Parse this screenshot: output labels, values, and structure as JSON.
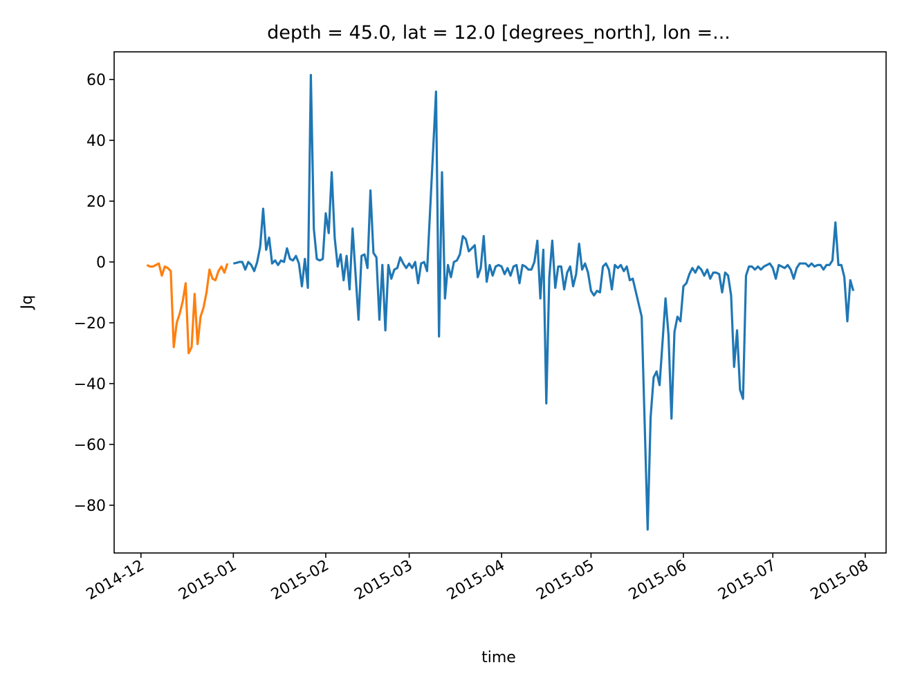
{
  "chart_data": {
    "type": "line",
    "title": "depth = 45.0, lat = 12.0 [degrees_north], lon =...",
    "xlabel": "time",
    "ylabel": "Jq",
    "xlim": [
      "2014-11-22",
      "2015-08-08"
    ],
    "ylim": [
      -95.7,
      69.1
    ],
    "xticks": [
      {
        "value": "2014-12-01",
        "label": "2014-12"
      },
      {
        "value": "2015-01-01",
        "label": "2015-01"
      },
      {
        "value": "2015-02-01",
        "label": "2015-02"
      },
      {
        "value": "2015-03-01",
        "label": "2015-03"
      },
      {
        "value": "2015-04-01",
        "label": "2015-04"
      },
      {
        "value": "2015-05-01",
        "label": "2015-05"
      },
      {
        "value": "2015-06-01",
        "label": "2015-06"
      },
      {
        "value": "2015-07-01",
        "label": "2015-07"
      },
      {
        "value": "2015-08-01",
        "label": "2015-08"
      }
    ],
    "yticks": [
      {
        "value": -80,
        "label": "−80"
      },
      {
        "value": -60,
        "label": "−60"
      },
      {
        "value": -40,
        "label": "−40"
      },
      {
        "value": -20,
        "label": "−20"
      },
      0,
      20,
      40,
      60
    ],
    "grid": false,
    "series": [
      {
        "color": "#ff7f0e",
        "x": [
          "2014-12-03",
          "2014-12-04",
          "2014-12-05",
          "2014-12-06",
          "2014-12-07",
          "2014-12-08",
          "2014-12-09",
          "2014-12-10",
          "2014-12-11",
          "2014-12-12",
          "2014-12-13",
          "2014-12-14",
          "2014-12-15",
          "2014-12-16",
          "2014-12-17",
          "2014-12-18",
          "2014-12-19",
          "2014-12-20",
          "2014-12-21",
          "2014-12-22",
          "2014-12-23",
          "2014-12-24",
          "2014-12-25",
          "2014-12-26",
          "2014-12-27",
          "2014-12-28",
          "2014-12-29",
          "2014-12-30"
        ],
        "values": [
          -1,
          -1.5,
          -1.5,
          -1,
          -0.5,
          -4.5,
          -1.5,
          -2,
          -3,
          -28,
          -20,
          -17,
          -13,
          -7,
          -30,
          -28,
          -10.5,
          -27,
          -18,
          -15,
          -10,
          -2.5,
          -5.5,
          -6,
          -3,
          -1.5,
          -3.5,
          -0.5
        ]
      },
      {
        "color": "#1f77b4",
        "x": [
          "2015-01-01",
          "2015-01-02",
          "2015-01-03",
          "2015-01-04",
          "2015-01-05",
          "2015-01-06",
          "2015-01-07",
          "2015-01-08",
          "2015-01-09",
          "2015-01-10",
          "2015-01-11",
          "2015-01-12",
          "2015-01-13",
          "2015-01-14",
          "2015-01-15",
          "2015-01-16",
          "2015-01-17",
          "2015-01-18",
          "2015-01-19",
          "2015-01-20",
          "2015-01-21",
          "2015-01-22",
          "2015-01-23",
          "2015-01-24",
          "2015-01-25",
          "2015-01-26",
          "2015-01-27",
          "2015-01-28",
          "2015-01-29",
          "2015-01-30",
          "2015-01-31",
          "2015-02-01",
          "2015-02-02",
          "2015-02-03",
          "2015-02-04",
          "2015-02-05",
          "2015-02-06",
          "2015-02-07",
          "2015-02-08",
          "2015-02-09",
          "2015-02-10",
          "2015-02-11",
          "2015-02-12",
          "2015-02-13",
          "2015-02-14",
          "2015-02-15",
          "2015-02-16",
          "2015-02-17",
          "2015-02-18",
          "2015-02-19",
          "2015-02-20",
          "2015-02-21",
          "2015-02-22",
          "2015-02-23",
          "2015-02-24",
          "2015-02-25",
          "2015-02-26",
          "2015-02-27",
          "2015-02-28",
          "2015-03-01",
          "2015-03-02",
          "2015-03-03",
          "2015-03-04",
          "2015-03-05",
          "2015-03-06",
          "2015-03-07",
          "2015-03-10",
          "2015-03-11",
          "2015-03-12",
          "2015-03-13",
          "2015-03-14",
          "2015-03-15",
          "2015-03-16",
          "2015-03-17",
          "2015-03-18",
          "2015-03-19",
          "2015-03-20",
          "2015-03-21",
          "2015-03-23",
          "2015-03-24",
          "2015-03-25",
          "2015-03-26",
          "2015-03-27",
          "2015-03-28",
          "2015-03-29",
          "2015-03-30",
          "2015-03-31",
          "2015-04-01",
          "2015-04-02",
          "2015-04-03",
          "2015-04-04",
          "2015-04-05",
          "2015-04-06",
          "2015-04-07",
          "2015-04-08",
          "2015-04-09",
          "2015-04-10",
          "2015-04-11",
          "2015-04-12",
          "2015-04-13",
          "2015-04-14",
          "2015-04-15",
          "2015-04-16",
          "2015-04-17",
          "2015-04-18",
          "2015-04-19",
          "2015-04-20",
          "2015-04-21",
          "2015-04-22",
          "2015-04-23",
          "2015-04-24",
          "2015-04-25",
          "2015-04-26",
          "2015-04-27",
          "2015-04-28",
          "2015-04-29",
          "2015-04-30",
          "2015-05-01",
          "2015-05-02",
          "2015-05-03",
          "2015-05-04",
          "2015-05-05",
          "2015-05-06",
          "2015-05-07",
          "2015-05-08",
          "2015-05-09",
          "2015-05-10",
          "2015-05-11",
          "2015-05-12",
          "2015-05-13",
          "2015-05-14",
          "2015-05-15",
          "2015-05-18",
          "2015-05-20",
          "2015-05-21",
          "2015-05-22",
          "2015-05-23",
          "2015-05-24",
          "2015-05-26",
          "2015-05-27",
          "2015-05-28",
          "2015-05-29",
          "2015-05-30",
          "2015-05-31",
          "2015-06-01",
          "2015-06-02",
          "2015-06-03",
          "2015-06-04",
          "2015-06-05",
          "2015-06-06",
          "2015-06-07",
          "2015-06-08",
          "2015-06-09",
          "2015-06-10",
          "2015-06-11",
          "2015-06-12",
          "2015-06-13",
          "2015-06-14",
          "2015-06-15",
          "2015-06-16",
          "2015-06-17",
          "2015-06-18",
          "2015-06-19",
          "2015-06-20",
          "2015-06-21",
          "2015-06-22",
          "2015-06-23",
          "2015-06-24",
          "2015-06-25",
          "2015-06-26",
          "2015-06-27",
          "2015-06-28",
          "2015-06-29",
          "2015-06-30",
          "2015-07-01",
          "2015-07-02",
          "2015-07-03",
          "2015-07-04",
          "2015-07-05",
          "2015-07-06",
          "2015-07-07",
          "2015-07-08",
          "2015-07-09",
          "2015-07-10",
          "2015-07-11",
          "2015-07-12",
          "2015-07-13",
          "2015-07-14",
          "2015-07-15",
          "2015-07-16",
          "2015-07-17",
          "2015-07-18",
          "2015-07-19",
          "2015-07-20",
          "2015-07-21",
          "2015-07-22",
          "2015-07-23",
          "2015-07-24",
          "2015-07-25",
          "2015-07-26",
          "2015-07-27",
          "2015-07-28"
        ],
        "values": [
          -0.5,
          -0.3,
          0,
          0,
          -2.5,
          0,
          -1,
          -3,
          0,
          5,
          17.5,
          4,
          8,
          -0.5,
          0.5,
          -1,
          0.5,
          0,
          4.5,
          1,
          0.5,
          2,
          -0.5,
          -8,
          1,
          -8.5,
          61.5,
          11,
          1,
          0.5,
          1,
          16,
          9.5,
          29.5,
          8,
          -1.5,
          2.5,
          -6,
          2,
          -9,
          11,
          -4,
          -19,
          2,
          2.5,
          -2,
          23.5,
          3,
          1.5,
          -19,
          -1,
          -22.5,
          -1,
          -5.5,
          -2.5,
          -2,
          1.5,
          -0.5,
          -2,
          -0.5,
          -2,
          0,
          -7,
          -0.5,
          0,
          -3,
          56,
          -24.5,
          29.5,
          -12,
          -1,
          -5,
          0,
          0.5,
          2.5,
          8.5,
          7.5,
          3.5,
          5.5,
          -5,
          -2,
          8.5,
          -6.5,
          -1,
          -4.5,
          -1.5,
          -1,
          -1.5,
          -4,
          -2,
          -4.5,
          -1.5,
          -1,
          -7,
          -1,
          -1.5,
          -2.5,
          -2.5,
          0,
          7,
          -12,
          4,
          -46.5,
          -5,
          7,
          -8.5,
          -1.5,
          -1.5,
          -9,
          -3.5,
          -1.5,
          -8,
          -4,
          6,
          -2.5,
          -0.5,
          -3.5,
          -9.5,
          -11,
          -9.5,
          -10,
          -1.5,
          -0.5,
          -2.5,
          -9,
          -1,
          -2,
          -1,
          -3,
          -1.5,
          -6,
          -5.5,
          -18,
          -88,
          -51,
          -38,
          -36,
          -40.5,
          -12,
          -24,
          -51.5,
          -23,
          -18,
          -19.5,
          -8,
          -7,
          -4,
          -2,
          -3.5,
          -1.5,
          -2.5,
          -4.5,
          -2.5,
          -5.5,
          -3.5,
          -3.5,
          -4,
          -10,
          -3.5,
          -4.5,
          -11,
          -34.5,
          -22.5,
          -42,
          -45,
          -4.5,
          -1.5,
          -1.5,
          -2.5,
          -1.5,
          -2.5,
          -1.5,
          -1,
          -0.5,
          -2,
          -5.5,
          -1,
          -1.5,
          -2,
          -1,
          -2.5,
          -5.5,
          -2,
          -0.5,
          -0.5,
          -0.5,
          -1.5,
          -0.5,
          -1.5,
          -1,
          -1,
          -2.5,
          -1,
          -1,
          0.5,
          13,
          -1,
          -1,
          -5,
          -19.5,
          -6,
          -9.5
        ]
      }
    ]
  }
}
